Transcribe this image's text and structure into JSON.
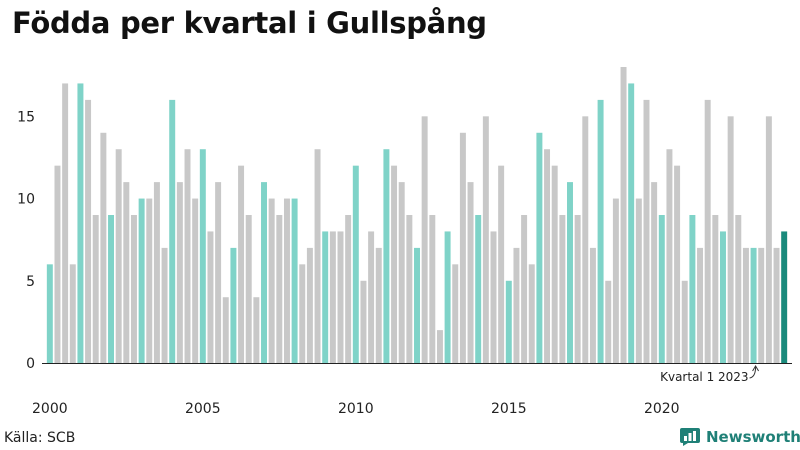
{
  "title": "Födda per kvartal i Gullspång",
  "source": "Källa: SCB",
  "brand": {
    "name": "Newsworthy",
    "icon": "newsworthy-logo-icon"
  },
  "colors": {
    "q1": "#7fd3c8",
    "other": "#c8c8c8",
    "highlight": "#1a8a7c"
  },
  "chart_data": {
    "type": "bar",
    "title": "Födda per kvartal i Gullspång",
    "xlabel": "",
    "ylabel": "",
    "ylim": [
      0,
      18
    ],
    "yticks": [
      0,
      5,
      10,
      15
    ],
    "xtick_labels": [
      {
        "label": "2000",
        "year": 2000
      },
      {
        "label": "2005",
        "year": 2005
      },
      {
        "label": "2010",
        "year": 2010
      },
      {
        "label": "2015",
        "year": 2015
      },
      {
        "label": "2020",
        "year": 2020
      }
    ],
    "start_year": 2000,
    "values": [
      6,
      12,
      17,
      6,
      17,
      16,
      9,
      14,
      9,
      13,
      11,
      9,
      10,
      10,
      11,
      7,
      16,
      11,
      13,
      10,
      13,
      8,
      11,
      4,
      7,
      12,
      9,
      4,
      11,
      10,
      9,
      10,
      10,
      6,
      7,
      13,
      8,
      8,
      8,
      9,
      12,
      5,
      8,
      7,
      13,
      12,
      11,
      9,
      7,
      15,
      9,
      2,
      8,
      6,
      14,
      11,
      9,
      15,
      8,
      12,
      5,
      7,
      9,
      6,
      14,
      13,
      12,
      9,
      11,
      9,
      15,
      7,
      16,
      5,
      10,
      18,
      17,
      10,
      16,
      11,
      9,
      13,
      12,
      5,
      9,
      7,
      16,
      9,
      8,
      15,
      9,
      7,
      7,
      7,
      15,
      7,
      8
    ],
    "annotation": {
      "text": "Kvartal 1 2023",
      "target_index": 92
    },
    "highlight_index": 96
  }
}
